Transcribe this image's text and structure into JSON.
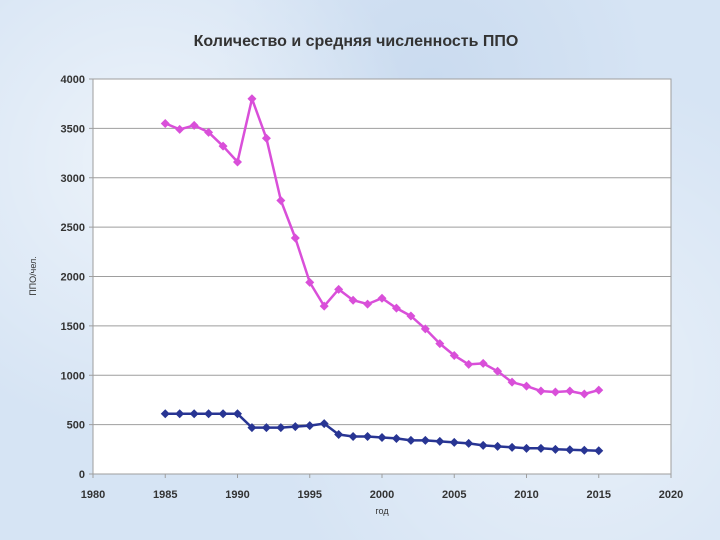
{
  "chart_data": {
    "type": "line",
    "title": "Количество и средняя численность ППО",
    "xlabel": "год",
    "ylabel": "ППО/чел.",
    "xlim": [
      1980,
      2020
    ],
    "ylim": [
      0,
      4000
    ],
    "xticks": [
      1980,
      1985,
      1990,
      1995,
      2000,
      2005,
      2010,
      2015,
      2020
    ],
    "yticks": [
      0,
      500,
      1000,
      1500,
      2000,
      2500,
      3000,
      3500,
      4000
    ],
    "grid": true,
    "legend": "none",
    "series": [
      {
        "color": "#d94fd9",
        "points": [
          [
            1985,
            3550
          ],
          [
            1986,
            3490
          ],
          [
            1987,
            3530
          ],
          [
            1988,
            3460
          ],
          [
            1989,
            3320
          ],
          [
            1990,
            3160
          ],
          [
            1991,
            3800
          ],
          [
            1992,
            3400
          ],
          [
            1993,
            2770
          ],
          [
            1994,
            2390
          ],
          [
            1995,
            1940
          ],
          [
            1996,
            1700
          ],
          [
            1997,
            1870
          ],
          [
            1998,
            1760
          ],
          [
            1999,
            1720
          ],
          [
            2000,
            1780
          ],
          [
            2001,
            1680
          ],
          [
            2002,
            1600
          ],
          [
            2003,
            1470
          ],
          [
            2004,
            1320
          ],
          [
            2005,
            1200
          ],
          [
            2006,
            1110
          ],
          [
            2007,
            1120
          ],
          [
            2008,
            1040
          ],
          [
            2009,
            930
          ],
          [
            2010,
            890
          ],
          [
            2011,
            840
          ],
          [
            2012,
            830
          ],
          [
            2013,
            840
          ],
          [
            2014,
            810
          ],
          [
            2015,
            850
          ]
        ]
      },
      {
        "color": "#283593",
        "points": [
          [
            1985,
            610
          ],
          [
            1986,
            610
          ],
          [
            1987,
            610
          ],
          [
            1988,
            610
          ],
          [
            1989,
            610
          ],
          [
            1990,
            610
          ],
          [
            1991,
            470
          ],
          [
            1992,
            470
          ],
          [
            1993,
            470
          ],
          [
            1994,
            480
          ],
          [
            1995,
            490
          ],
          [
            1996,
            510
          ],
          [
            1997,
            400
          ],
          [
            1998,
            380
          ],
          [
            1999,
            380
          ],
          [
            2000,
            370
          ],
          [
            2001,
            360
          ],
          [
            2002,
            340
          ],
          [
            2003,
            340
          ],
          [
            2004,
            330
          ],
          [
            2005,
            320
          ],
          [
            2006,
            310
          ],
          [
            2007,
            290
          ],
          [
            2008,
            280
          ],
          [
            2009,
            270
          ],
          [
            2010,
            260
          ],
          [
            2011,
            260
          ],
          [
            2012,
            250
          ],
          [
            2013,
            245
          ],
          [
            2014,
            240
          ],
          [
            2015,
            235
          ]
        ]
      }
    ]
  }
}
